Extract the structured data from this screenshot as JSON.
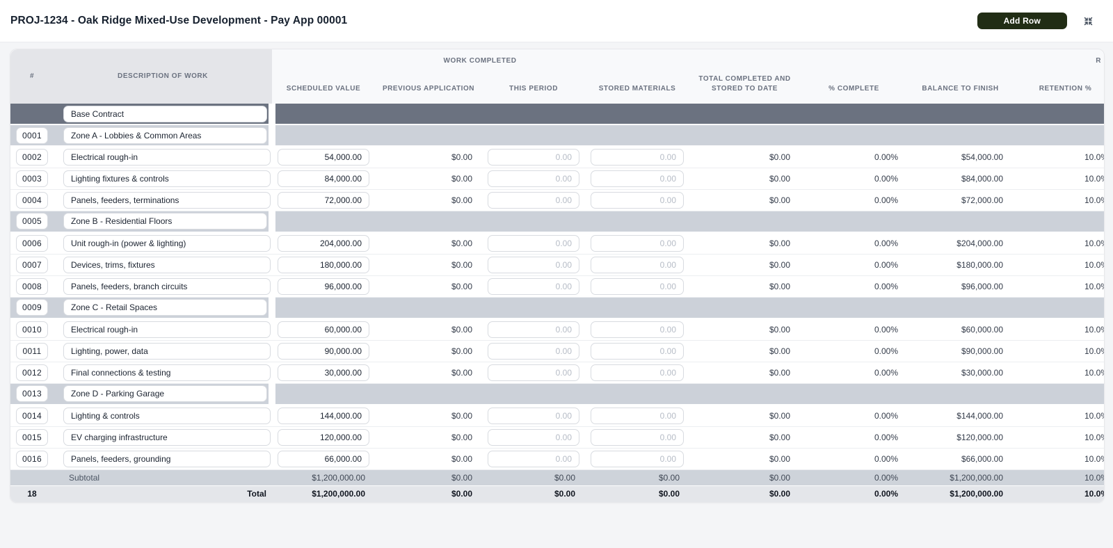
{
  "header": {
    "title": "PROJ-1234 - Oak Ridge Mixed-Use Development - Pay App 00001",
    "add_row_button": "Add Row",
    "icons": {
      "compress": "arrows-pointing-in"
    }
  },
  "colors": {
    "add_row_button_bg": "#212d15",
    "section_row_bg": "#6b7280",
    "zone_row_bg": "#ccd1d9",
    "subtotal_row_bg": "#ced3da",
    "total_row_bg": "#e4e6ea",
    "header_left_block_bg": "#e4e5e9"
  },
  "table": {
    "group_headers": {
      "work_completed": "WORK COMPLETED",
      "retainage_clipped": "R"
    },
    "columns": [
      "#",
      "DESCRIPTION OF WORK",
      "SCHEDULED VALUE",
      "PREVIOUS APPLICATION",
      "THIS PERIOD",
      "STORED MATERIALS",
      "TOTAL COMPLETED AND STORED TO DATE",
      "% COMPLETE",
      "BALANCE TO FINISH",
      "RETENTION %"
    ],
    "rows": [
      {
        "type": "section",
        "num": "",
        "desc": "Base Contract"
      },
      {
        "type": "zone",
        "num": "0001",
        "desc": "Zone A - Lobbies & Common Areas"
      },
      {
        "type": "item",
        "num": "0002",
        "desc": "Electrical rough-in",
        "scheduled": "54,000.00",
        "previous": "$0.00",
        "this_period_placeholder": "0.00",
        "stored_placeholder": "0.00",
        "total_completed": "$0.00",
        "pct_complete": "0.00%",
        "balance": "$54,000.00",
        "retention": "10.0%"
      },
      {
        "type": "item",
        "num": "0003",
        "desc": "Lighting fixtures & controls",
        "scheduled": "84,000.00",
        "previous": "$0.00",
        "this_period_placeholder": "0.00",
        "stored_placeholder": "0.00",
        "total_completed": "$0.00",
        "pct_complete": "0.00%",
        "balance": "$84,000.00",
        "retention": "10.0%"
      },
      {
        "type": "item",
        "num": "0004",
        "desc": "Panels, feeders, terminations",
        "scheduled": "72,000.00",
        "previous": "$0.00",
        "this_period_placeholder": "0.00",
        "stored_placeholder": "0.00",
        "total_completed": "$0.00",
        "pct_complete": "0.00%",
        "balance": "$72,000.00",
        "retention": "10.0%"
      },
      {
        "type": "zone",
        "num": "0005",
        "desc": "Zone B - Residential Floors"
      },
      {
        "type": "item",
        "num": "0006",
        "desc": "Unit rough-in (power & lighting)",
        "scheduled": "204,000.00",
        "previous": "$0.00",
        "this_period_placeholder": "0.00",
        "stored_placeholder": "0.00",
        "total_completed": "$0.00",
        "pct_complete": "0.00%",
        "balance": "$204,000.00",
        "retention": "10.0%"
      },
      {
        "type": "item",
        "num": "0007",
        "desc": "Devices, trims, fixtures",
        "scheduled": "180,000.00",
        "previous": "$0.00",
        "this_period_placeholder": "0.00",
        "stored_placeholder": "0.00",
        "total_completed": "$0.00",
        "pct_complete": "0.00%",
        "balance": "$180,000.00",
        "retention": "10.0%"
      },
      {
        "type": "item",
        "num": "0008",
        "desc": "Panels, feeders, branch circuits",
        "scheduled": "96,000.00",
        "previous": "$0.00",
        "this_period_placeholder": "0.00",
        "stored_placeholder": "0.00",
        "total_completed": "$0.00",
        "pct_complete": "0.00%",
        "balance": "$96,000.00",
        "retention": "10.0%"
      },
      {
        "type": "zone",
        "num": "0009",
        "desc": "Zone C - Retail Spaces"
      },
      {
        "type": "item",
        "num": "0010",
        "desc": "Electrical rough-in",
        "scheduled": "60,000.00",
        "previous": "$0.00",
        "this_period_placeholder": "0.00",
        "stored_placeholder": "0.00",
        "total_completed": "$0.00",
        "pct_complete": "0.00%",
        "balance": "$60,000.00",
        "retention": "10.0%"
      },
      {
        "type": "item",
        "num": "0011",
        "desc": "Lighting, power, data",
        "scheduled": "90,000.00",
        "previous": "$0.00",
        "this_period_placeholder": "0.00",
        "stored_placeholder": "0.00",
        "total_completed": "$0.00",
        "pct_complete": "0.00%",
        "balance": "$90,000.00",
        "retention": "10.0%"
      },
      {
        "type": "item",
        "num": "0012",
        "desc": "Final connections & testing",
        "scheduled": "30,000.00",
        "previous": "$0.00",
        "this_period_placeholder": "0.00",
        "stored_placeholder": "0.00",
        "total_completed": "$0.00",
        "pct_complete": "0.00%",
        "balance": "$30,000.00",
        "retention": "10.0%"
      },
      {
        "type": "zone",
        "num": "0013",
        "desc": "Zone D - Parking Garage"
      },
      {
        "type": "item",
        "num": "0014",
        "desc": "Lighting & controls",
        "scheduled": "144,000.00",
        "previous": "$0.00",
        "this_period_placeholder": "0.00",
        "stored_placeholder": "0.00",
        "total_completed": "$0.00",
        "pct_complete": "0.00%",
        "balance": "$144,000.00",
        "retention": "10.0%"
      },
      {
        "type": "item",
        "num": "0015",
        "desc": "EV charging infrastructure",
        "scheduled": "120,000.00",
        "previous": "$0.00",
        "this_period_placeholder": "0.00",
        "stored_placeholder": "0.00",
        "total_completed": "$0.00",
        "pct_complete": "0.00%",
        "balance": "$120,000.00",
        "retention": "10.0%"
      },
      {
        "type": "item",
        "num": "0016",
        "desc": "Panels, feeders, grounding",
        "scheduled": "66,000.00",
        "previous": "$0.00",
        "this_period_placeholder": "0.00",
        "stored_placeholder": "0.00",
        "total_completed": "$0.00",
        "pct_complete": "0.00%",
        "balance": "$66,000.00",
        "retention": "10.0%"
      }
    ],
    "subtotal_row": {
      "label": "Subtotal",
      "scheduled": "$1,200,000.00",
      "previous": "$0.00",
      "this_period": "$0.00",
      "stored": "$0.00",
      "total_completed": "$0.00",
      "pct_complete": "0.00%",
      "balance": "$1,200,000.00",
      "retention": "10.0%"
    },
    "total_row": {
      "count": "18",
      "label": "Total",
      "scheduled": "$1,200,000.00",
      "previous": "$0.00",
      "this_period": "$0.00",
      "stored": "$0.00",
      "total_completed": "$0.00",
      "pct_complete": "0.00%",
      "balance": "$1,200,000.00",
      "retention": "10.0%"
    }
  }
}
